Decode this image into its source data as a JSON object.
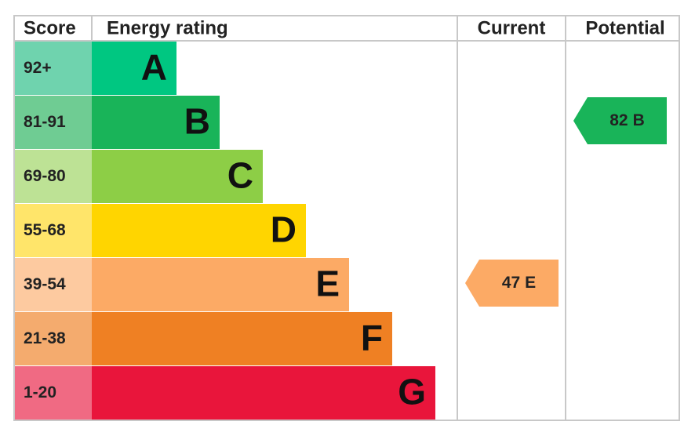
{
  "header": {
    "score": "Score",
    "rating": "Energy rating",
    "current": "Current",
    "potential": "Potential"
  },
  "bands": [
    {
      "score": "92+",
      "letter": "A",
      "color": "#00c781",
      "light": "#6fd3ae"
    },
    {
      "score": "81-91",
      "letter": "B",
      "color": "#19b459",
      "light": "#6fcc93"
    },
    {
      "score": "69-80",
      "letter": "C",
      "color": "#8dce46",
      "light": "#bde295"
    },
    {
      "score": "55-68",
      "letter": "D",
      "color": "#ffd500",
      "light": "#ffe56a"
    },
    {
      "score": "39-54",
      "letter": "E",
      "color": "#fcaa65",
      "light": "#fdcaa0"
    },
    {
      "score": "21-38",
      "letter": "F",
      "color": "#ef8023",
      "light": "#f4ab6e"
    },
    {
      "score": "1-20",
      "letter": "G",
      "color": "#e9153b",
      "light": "#f06a83"
    }
  ],
  "current": {
    "score": 47,
    "band": "E",
    "color": "#fcaa65"
  },
  "potential": {
    "score": 82,
    "band": "B",
    "color": "#19b459"
  }
}
